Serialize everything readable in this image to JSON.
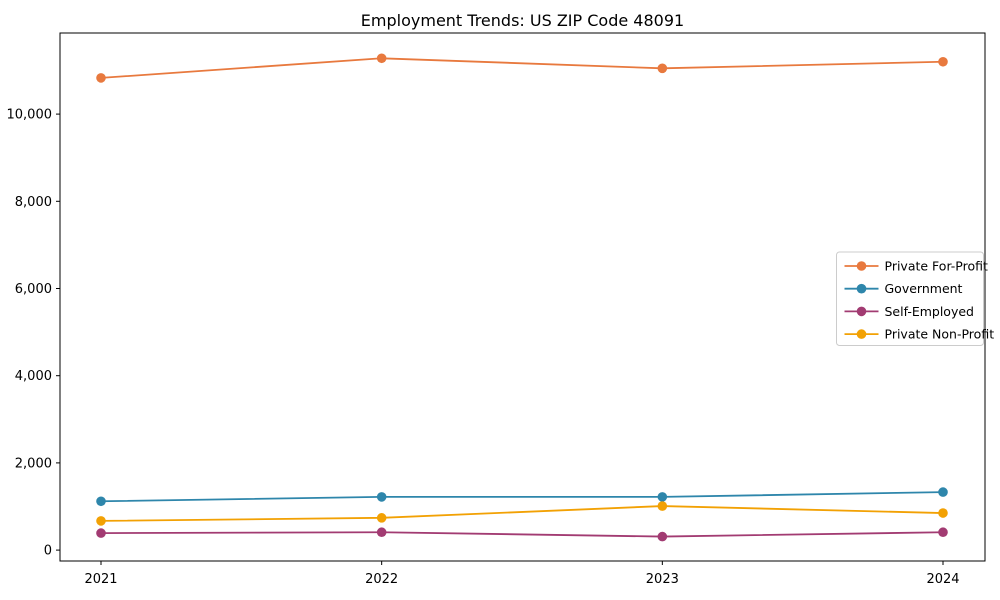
{
  "figure": {
    "background": "#ffffff",
    "frame_color": "#000000"
  },
  "chart_data": {
    "type": "line",
    "title": "Employment Trends: US ZIP Code 48091",
    "categories": [
      "2021",
      "2022",
      "2023",
      "2024"
    ],
    "series": [
      {
        "name": "Private For-Profit",
        "color": "#E8793E",
        "values": [
          10830,
          11280,
          11050,
          11200
        ]
      },
      {
        "name": "Government",
        "color": "#2E86AB",
        "values": [
          1120,
          1220,
          1220,
          1330
        ]
      },
      {
        "name": "Self-Employed",
        "color": "#A23B72",
        "values": [
          390,
          410,
          310,
          410
        ]
      },
      {
        "name": "Private Non-Profit",
        "color": "#F2A104",
        "values": [
          670,
          740,
          1010,
          850
        ]
      }
    ],
    "xlabel": "",
    "ylabel": "",
    "ylim": [
      -250,
      11860
    ],
    "yticks": [
      0,
      2000,
      4000,
      6000,
      8000,
      10000
    ],
    "ytick_labels": [
      "0",
      "2,000",
      "4,000",
      "6,000",
      "8,000",
      "10,000"
    ],
    "grid": false,
    "legend_position": "center right",
    "marker": "circle",
    "axis_color": "#000000",
    "tick_label_color": "#000000",
    "legend_border_color": "#cccccc",
    "legend_background": "#ffffff"
  }
}
